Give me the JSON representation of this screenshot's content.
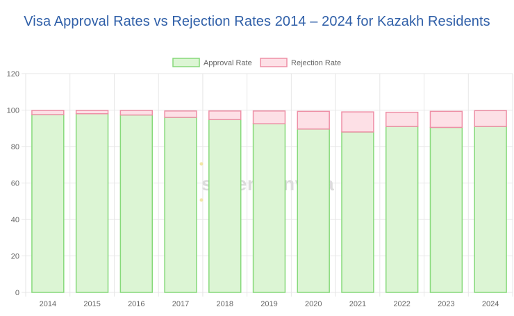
{
  "title": "Visa Approval Rates vs Rejection Rates 2014 – 2024 for Kazakh Residents",
  "watermark": {
    "brand": "schengenvisa",
    "suffix": "info"
  },
  "colors": {
    "approval_fill": "#dcf5d4",
    "approval_border": "#86d97a",
    "rejection_fill": "#fde0e6",
    "rejection_border": "#ee8fa6",
    "grid": "#e6e6e6",
    "title": "#2f5fa8"
  },
  "chart_data": {
    "type": "bar",
    "stacked": true,
    "title": "Visa Approval Rates vs Rejection Rates 2014 – 2024 for Kazakh Residents",
    "categories": [
      "2014",
      "2015",
      "2016",
      "2017",
      "2018",
      "2019",
      "2020",
      "2021",
      "2022",
      "2023",
      "2024"
    ],
    "series": [
      {
        "name": "Approval Rate",
        "values": [
          97.5,
          98.0,
          97.3,
          96.0,
          94.8,
          92.5,
          89.6,
          88.0,
          91.0,
          90.5,
          91.0
        ]
      },
      {
        "name": "Rejection Rate",
        "values": [
          2.3,
          1.8,
          2.5,
          3.5,
          4.7,
          7.0,
          9.7,
          11.0,
          7.8,
          8.8,
          8.7
        ]
      }
    ],
    "ylim": [
      0,
      120
    ],
    "yticks": [
      0,
      20,
      40,
      60,
      80,
      100,
      120
    ],
    "grid": true,
    "legend_position": "top"
  }
}
